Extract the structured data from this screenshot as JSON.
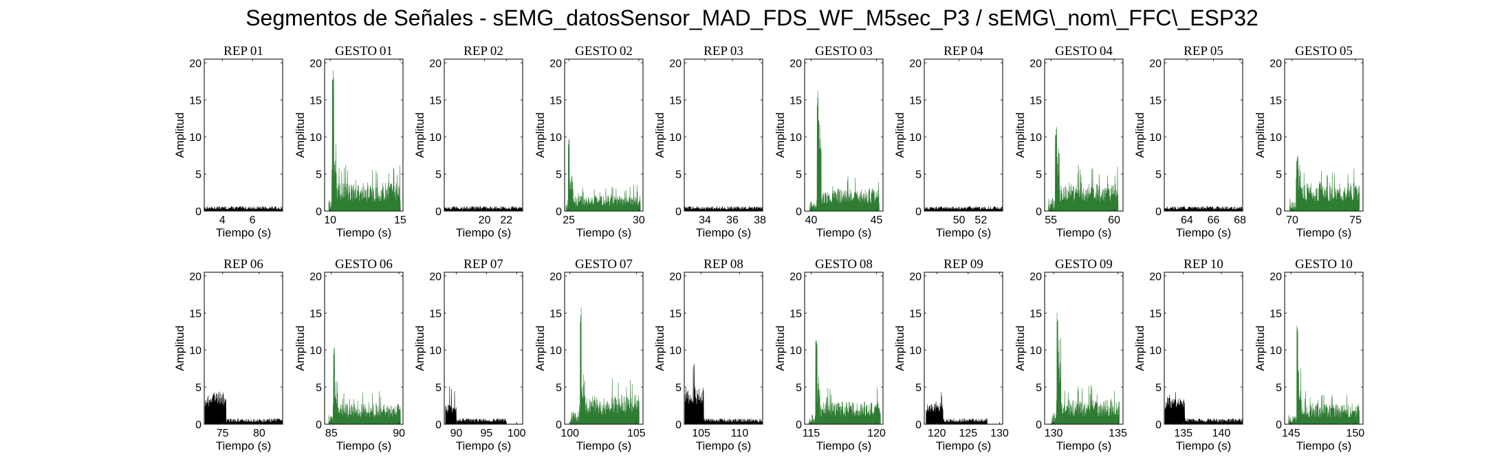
{
  "title": "Segmentos de Señales - sEMG_datosSensor_MAD_FDS_WF_M5sec_P3 / sEMG\\_nom\\_FFC\\_ESP32",
  "colors": {
    "rep": "#000000",
    "gesto": "#2e7d32"
  },
  "chart_data": [
    {
      "type": "area",
      "title": "REP_01",
      "xlabel": "Tiempo (s)",
      "ylabel": "Amplitud",
      "xlim": [
        2.8,
        8
      ],
      "ylim": [
        0,
        20.5
      ],
      "xticks": [
        4,
        6
      ],
      "yticks": [
        0,
        5,
        10,
        15,
        20
      ],
      "kind": "rep",
      "segment": {
        "start": 2.8,
        "end": 8,
        "base": 0.5,
        "burst_end": 2.8,
        "burst_level": 0.5,
        "peak": 1.0
      }
    },
    {
      "type": "area",
      "title": "GESTO_01",
      "xlabel": "Tiempo (s)",
      "ylabel": "Amplitud",
      "xlim": [
        9.6,
        15.2
      ],
      "ylim": [
        0,
        20.5
      ],
      "xticks": [
        10,
        15
      ],
      "yticks": [
        0,
        5,
        10,
        15,
        20
      ],
      "kind": "gesto",
      "segment": {
        "start": 9.9,
        "end": 15.0,
        "base": 3.5,
        "spike_at": 10.2,
        "peak": 20.0,
        "peak2": 12.0
      }
    },
    {
      "type": "area",
      "title": "REP_02",
      "xlabel": "Tiempo (s)",
      "ylabel": "Amplitud",
      "xlim": [
        16.3,
        23.5
      ],
      "ylim": [
        0,
        20.5
      ],
      "xticks": [
        20,
        22
      ],
      "yticks": [
        0,
        5,
        10,
        15,
        20
      ],
      "kind": "rep",
      "segment": {
        "start": 16.3,
        "end": 23.5,
        "base": 0.5,
        "burst_end": 16.3,
        "burst_level": 0.5,
        "peak": 1.0
      }
    },
    {
      "type": "area",
      "title": "GESTO_02",
      "xlabel": "Tiempo (s)",
      "ylabel": "Amplitud",
      "xlim": [
        24.7,
        30.3
      ],
      "ylim": [
        0,
        20.5
      ],
      "xticks": [
        25,
        30
      ],
      "yticks": [
        0,
        5,
        10,
        15,
        20
      ],
      "kind": "gesto",
      "segment": {
        "start": 24.8,
        "end": 30.1,
        "base": 2.0,
        "spike_at": 25.0,
        "peak": 10.2,
        "peak2": 6.5
      }
    },
    {
      "type": "area",
      "title": "REP_03",
      "xlabel": "Tiempo (s)",
      "ylabel": "Amplitud",
      "xlim": [
        32.5,
        38.2
      ],
      "ylim": [
        0,
        20.5
      ],
      "xticks": [
        34,
        36,
        38
      ],
      "yticks": [
        0,
        5,
        10,
        15,
        20
      ],
      "kind": "rep",
      "segment": {
        "start": 32.5,
        "end": 38.2,
        "base": 0.5,
        "burst_end": 32.5,
        "burst_level": 0.5,
        "peak": 1.0
      }
    },
    {
      "type": "area",
      "title": "GESTO_03",
      "xlabel": "Tiempo (s)",
      "ylabel": "Amplitud",
      "xlim": [
        39.5,
        45.5
      ],
      "ylim": [
        0,
        20.5
      ],
      "xticks": [
        40,
        45
      ],
      "yticks": [
        0,
        5,
        10,
        15,
        20
      ],
      "kind": "gesto",
      "segment": {
        "start": 39.9,
        "end": 45.2,
        "base": 2.8,
        "spike_at": 40.5,
        "peak": 16.3,
        "peak2": 13.0
      }
    },
    {
      "type": "area",
      "title": "REP_04",
      "xlabel": "Tiempo (s)",
      "ylabel": "Amplitud",
      "xlim": [
        46.8,
        54
      ],
      "ylim": [
        0,
        20.5
      ],
      "xticks": [
        50,
        52
      ],
      "yticks": [
        0,
        5,
        10,
        15,
        20
      ],
      "kind": "rep",
      "segment": {
        "start": 46.8,
        "end": 54,
        "base": 0.5,
        "burst_end": 46.8,
        "burst_level": 0.5,
        "peak": 1.0
      }
    },
    {
      "type": "area",
      "title": "GESTO_04",
      "xlabel": "Tiempo (s)",
      "ylabel": "Amplitud",
      "xlim": [
        54.5,
        60.7
      ],
      "ylim": [
        0,
        20.5
      ],
      "xticks": [
        55,
        60
      ],
      "yticks": [
        0,
        5,
        10,
        15,
        20
      ],
      "kind": "gesto",
      "segment": {
        "start": 54.8,
        "end": 60.3,
        "base": 3.5,
        "spike_at": 55.4,
        "peak": 11.5,
        "peak2": 9.0
      }
    },
    {
      "type": "area",
      "title": "REP_05",
      "xlabel": "Tiempo (s)",
      "ylabel": "Amplitud",
      "xlim": [
        62.3,
        68.2
      ],
      "ylim": [
        0,
        20.5
      ],
      "xticks": [
        64,
        66,
        68
      ],
      "yticks": [
        0,
        5,
        10,
        15,
        20
      ],
      "kind": "rep",
      "segment": {
        "start": 62.3,
        "end": 68.2,
        "base": 0.5,
        "burst_end": 62.3,
        "burst_level": 0.5,
        "peak": 1.1
      }
    },
    {
      "type": "area",
      "title": "GESTO_05",
      "xlabel": "Tiempo (s)",
      "ylabel": "Amplitud",
      "xlim": [
        69.4,
        75.6
      ],
      "ylim": [
        0,
        20.5
      ],
      "xticks": [
        70,
        75
      ],
      "yticks": [
        0,
        5,
        10,
        15,
        20
      ],
      "kind": "gesto",
      "segment": {
        "start": 69.8,
        "end": 75.3,
        "base": 3.5,
        "spike_at": 70.4,
        "peak": 7.8,
        "peak2": 6.5
      }
    },
    {
      "type": "area",
      "title": "REP_06",
      "xlabel": "Tiempo (s)",
      "ylabel": "Amplitud",
      "xlim": [
        72.5,
        83.2
      ],
      "ylim": [
        0,
        20.5
      ],
      "xticks": [
        75,
        80
      ],
      "yticks": [
        0,
        5,
        10,
        15,
        20
      ],
      "kind": "rep",
      "segment": {
        "start": 72.6,
        "end": 83.2,
        "base": 0.6,
        "burst_end": 75.5,
        "burst_level": 4.0,
        "peak": 6.0
      }
    },
    {
      "type": "area",
      "title": "GESTO_06",
      "xlabel": "Tiempo (s)",
      "ylabel": "Amplitud",
      "xlim": [
        84.5,
        90.3
      ],
      "ylim": [
        0,
        20.5
      ],
      "xticks": [
        85,
        90
      ],
      "yticks": [
        0,
        5,
        10,
        15,
        20
      ],
      "kind": "gesto",
      "segment": {
        "start": 84.8,
        "end": 90.1,
        "base": 2.5,
        "spike_at": 85.2,
        "peak": 10.8,
        "peak2": 6.0
      }
    },
    {
      "type": "area",
      "title": "REP_07",
      "xlabel": "Tiempo (s)",
      "ylabel": "Amplitud",
      "xlim": [
        88,
        101
      ],
      "ylim": [
        0,
        20.5
      ],
      "xticks": [
        90,
        95,
        100
      ],
      "yticks": [
        0,
        5,
        10,
        15,
        20
      ],
      "kind": "rep",
      "segment": {
        "start": 88.2,
        "end": 98.3,
        "base": 0.6,
        "burst_end": 90.0,
        "burst_level": 2.5,
        "peak": 5.2
      }
    },
    {
      "type": "area",
      "title": "GESTO_07",
      "xlabel": "Tiempo (s)",
      "ylabel": "Amplitud",
      "xlim": [
        99.6,
        105.5
      ],
      "ylim": [
        0,
        20.5
      ],
      "xticks": [
        100,
        105
      ],
      "yticks": [
        0,
        5,
        10,
        15,
        20
      ],
      "kind": "gesto",
      "segment": {
        "start": 100.0,
        "end": 105.2,
        "base": 3.5,
        "spike_at": 100.8,
        "peak": 16.0,
        "peak2": 8.0
      }
    },
    {
      "type": "area",
      "title": "REP_08",
      "xlabel": "Tiempo (s)",
      "ylabel": "Amplitud",
      "xlim": [
        102.8,
        113
      ],
      "ylim": [
        0,
        20.5
      ],
      "xticks": [
        105,
        110
      ],
      "yticks": [
        0,
        5,
        10,
        15,
        20
      ],
      "kind": "rep",
      "segment": {
        "start": 102.9,
        "end": 113,
        "base": 0.6,
        "burst_end": 105.3,
        "burst_level": 4.5,
        "peak": 8.8
      }
    },
    {
      "type": "area",
      "title": "GESTO_08",
      "xlabel": "Tiempo (s)",
      "ylabel": "Amplitud",
      "xlim": [
        114.5,
        120.5
      ],
      "ylim": [
        0,
        20.5
      ],
      "xticks": [
        115,
        120
      ],
      "yticks": [
        0,
        5,
        10,
        15,
        20
      ],
      "kind": "gesto",
      "segment": {
        "start": 114.8,
        "end": 120.3,
        "base": 2.8,
        "spike_at": 115.4,
        "peak": 12.5,
        "peak2": 6.5
      }
    },
    {
      "type": "area",
      "title": "REP_09",
      "xlabel": "Tiempo (s)",
      "ylabel": "Amplitud",
      "xlim": [
        118,
        130.5
      ],
      "ylim": [
        0,
        20.5
      ],
      "xticks": [
        120,
        125,
        130
      ],
      "yticks": [
        0,
        5,
        10,
        15,
        20
      ],
      "kind": "rep",
      "segment": {
        "start": 118.3,
        "end": 128.0,
        "base": 0.6,
        "burst_end": 121.0,
        "burst_level": 2.5,
        "peak": 4.3
      }
    },
    {
      "type": "area",
      "title": "GESTO_09",
      "xlabel": "Tiempo (s)",
      "ylabel": "Amplitud",
      "xlim": [
        129.3,
        135.4
      ],
      "ylim": [
        0,
        20.5
      ],
      "xticks": [
        130,
        135
      ],
      "yticks": [
        0,
        5,
        10,
        15,
        20
      ],
      "kind": "gesto",
      "segment": {
        "start": 129.8,
        "end": 135.1,
        "base": 3.0,
        "spike_at": 130.3,
        "peak": 16.3,
        "peak2": 12.5
      }
    },
    {
      "type": "area",
      "title": "REP_10",
      "xlabel": "Tiempo (s)",
      "ylabel": "Amplitud",
      "xlim": [
        132.5,
        142.8
      ],
      "ylim": [
        0,
        20.5
      ],
      "xticks": [
        135,
        140
      ],
      "yticks": [
        0,
        5,
        10,
        15,
        20
      ],
      "kind": "rep",
      "segment": {
        "start": 132.6,
        "end": 142.8,
        "base": 0.6,
        "burst_end": 135.2,
        "burst_level": 3.5,
        "peak": 5.7
      }
    },
    {
      "type": "area",
      "title": "GESTO_10",
      "xlabel": "Tiempo (s)",
      "ylabel": "Amplitud",
      "xlim": [
        144.5,
        150.6
      ],
      "ylim": [
        0,
        20.5
      ],
      "xticks": [
        145,
        150
      ],
      "yticks": [
        0,
        5,
        10,
        15,
        20
      ],
      "kind": "gesto",
      "segment": {
        "start": 144.8,
        "end": 150.3,
        "base": 2.5,
        "spike_at": 145.5,
        "peak": 14.5,
        "peak2": 8.0
      }
    }
  ]
}
